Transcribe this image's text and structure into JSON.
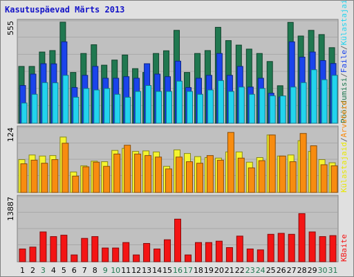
{
  "title": "Kasutuspäevad Märts 2013",
  "colors": {
    "background": "#e0e0e0",
    "plot_background": "#c0c0c0",
    "title": "#1414c8",
    "weekend_day_label": "#1e7850",
    "weekday_day_label": "#000000"
  },
  "chart_data": [
    {
      "type": "bar",
      "panel": "top",
      "max_label": "555",
      "ylim": [
        0,
        555
      ],
      "categories": [
        "1",
        "2",
        "3",
        "4",
        "5",
        "6",
        "7",
        "8",
        "9",
        "10",
        "11",
        "12",
        "13",
        "14",
        "15",
        "16",
        "17",
        "18",
        "19",
        "20",
        "21",
        "22",
        "23",
        "24",
        "25",
        "26",
        "27",
        "28",
        "29",
        "30",
        "31"
      ],
      "weekend_days": [
        "3",
        "9",
        "10",
        "16",
        "17",
        "23",
        "24",
        "30",
        "31"
      ],
      "series": [
        {
          "name": "Pöördumisi",
          "color": "#207850",
          "values": [
            312,
            312,
            391,
            399,
            555,
            279,
            383,
            431,
            319,
            347,
            375,
            300,
            279,
            383,
            398,
            510,
            279,
            383,
            399,
            527,
            454,
            429,
            407,
            383,
            339,
            206,
            554,
            479,
            510,
            487,
            415
          ]
        },
        {
          "name": "Faile",
          "color": "#1a44ec",
          "values": [
            207,
            270,
            327,
            326,
            447,
            196,
            263,
            312,
            247,
            247,
            256,
            247,
            327,
            270,
            256,
            341,
            196,
            247,
            263,
            383,
            263,
            312,
            199,
            247,
            165,
            144,
            447,
            363,
            391,
            344,
            328
          ]
        },
        {
          "name": "Külastajaid",
          "color": "#22d4ee",
          "values": [
            111,
            159,
            223,
            222,
            263,
            143,
            191,
            183,
            191,
            159,
            143,
            175,
            207,
            175,
            175,
            231,
            175,
            159,
            183,
            234,
            175,
            199,
            159,
            191,
            151,
            150,
            199,
            223,
            294,
            239,
            263
          ]
        }
      ]
    },
    {
      "type": "bar",
      "panel": "middle",
      "max_label": "124",
      "ylim": [
        0,
        124
      ],
      "categories": [
        "1",
        "2",
        "3",
        "4",
        "5",
        "6",
        "7",
        "8",
        "9",
        "10",
        "11",
        "12",
        "13",
        "14",
        "15",
        "16",
        "17",
        "18",
        "19",
        "20",
        "21",
        "22",
        "23",
        "24",
        "25",
        "26",
        "27",
        "28",
        "29",
        "30",
        "31"
      ],
      "series": [
        {
          "name": "Külastajaid",
          "color": "#f4f430",
          "values": [
            64,
            73,
            71,
            72,
            108,
            40,
            52,
            61,
            60,
            82,
            86,
            80,
            81,
            79,
            51,
            83,
            76,
            70,
            68,
            67,
            79,
            79,
            59,
            68,
            112,
            71,
            73,
            101,
            80,
            64,
            58
          ]
        },
        {
          "name": "Arvuteid",
          "color": "#f88c10",
          "values": [
            56,
            63,
            57,
            64,
            96,
            32,
            50,
            59,
            51,
            75,
            92,
            75,
            72,
            69,
            46,
            69,
            60,
            57,
            72,
            63,
            117,
            67,
            48,
            62,
            112,
            71,
            60,
            115,
            91,
            54,
            52
          ]
        }
      ]
    },
    {
      "type": "bar",
      "panel": "bottom",
      "max_label": "13887",
      "ylim": [
        0,
        13887
      ],
      "categories": [
        "1",
        "2",
        "3",
        "4",
        "5",
        "6",
        "7",
        "8",
        "9",
        "10",
        "11",
        "12",
        "13",
        "14",
        "15",
        "16",
        "17",
        "18",
        "19",
        "20",
        "21",
        "22",
        "23",
        "24",
        "25",
        "26",
        "27",
        "28",
        "29",
        "30",
        "31"
      ],
      "series": [
        {
          "name": "KBaite",
          "color": "#f41414",
          "values": [
            2800,
            3200,
            6500,
            5500,
            5800,
            1500,
            5100,
            5500,
            3000,
            3000,
            4200,
            1500,
            4000,
            2800,
            4800,
            9300,
            1500,
            4200,
            4200,
            4500,
            3100,
            5600,
            2800,
            2600,
            6000,
            6200,
            6000,
            10500,
            6500,
            5500,
            5700
          ]
        }
      ]
    }
  ],
  "right_labels": {
    "top": [
      {
        "text": "Pöördumisi",
        "color": "#207850"
      },
      {
        "text": "/",
        "color": "#666666"
      },
      {
        "text": "Faile",
        "color": "#1a44ec"
      },
      {
        "text": "/",
        "color": "#666666"
      },
      {
        "text": "Külastajaid",
        "color": "#22d4ee"
      }
    ],
    "middle": [
      {
        "text": "Külastajaid",
        "color": "#e8e800"
      },
      {
        "text": "/",
        "color": "#666666"
      },
      {
        "text": "Arvuteid",
        "color": "#f88c10"
      }
    ],
    "bottom": [
      {
        "text": "KBaite",
        "color": "#f41414"
      }
    ]
  }
}
